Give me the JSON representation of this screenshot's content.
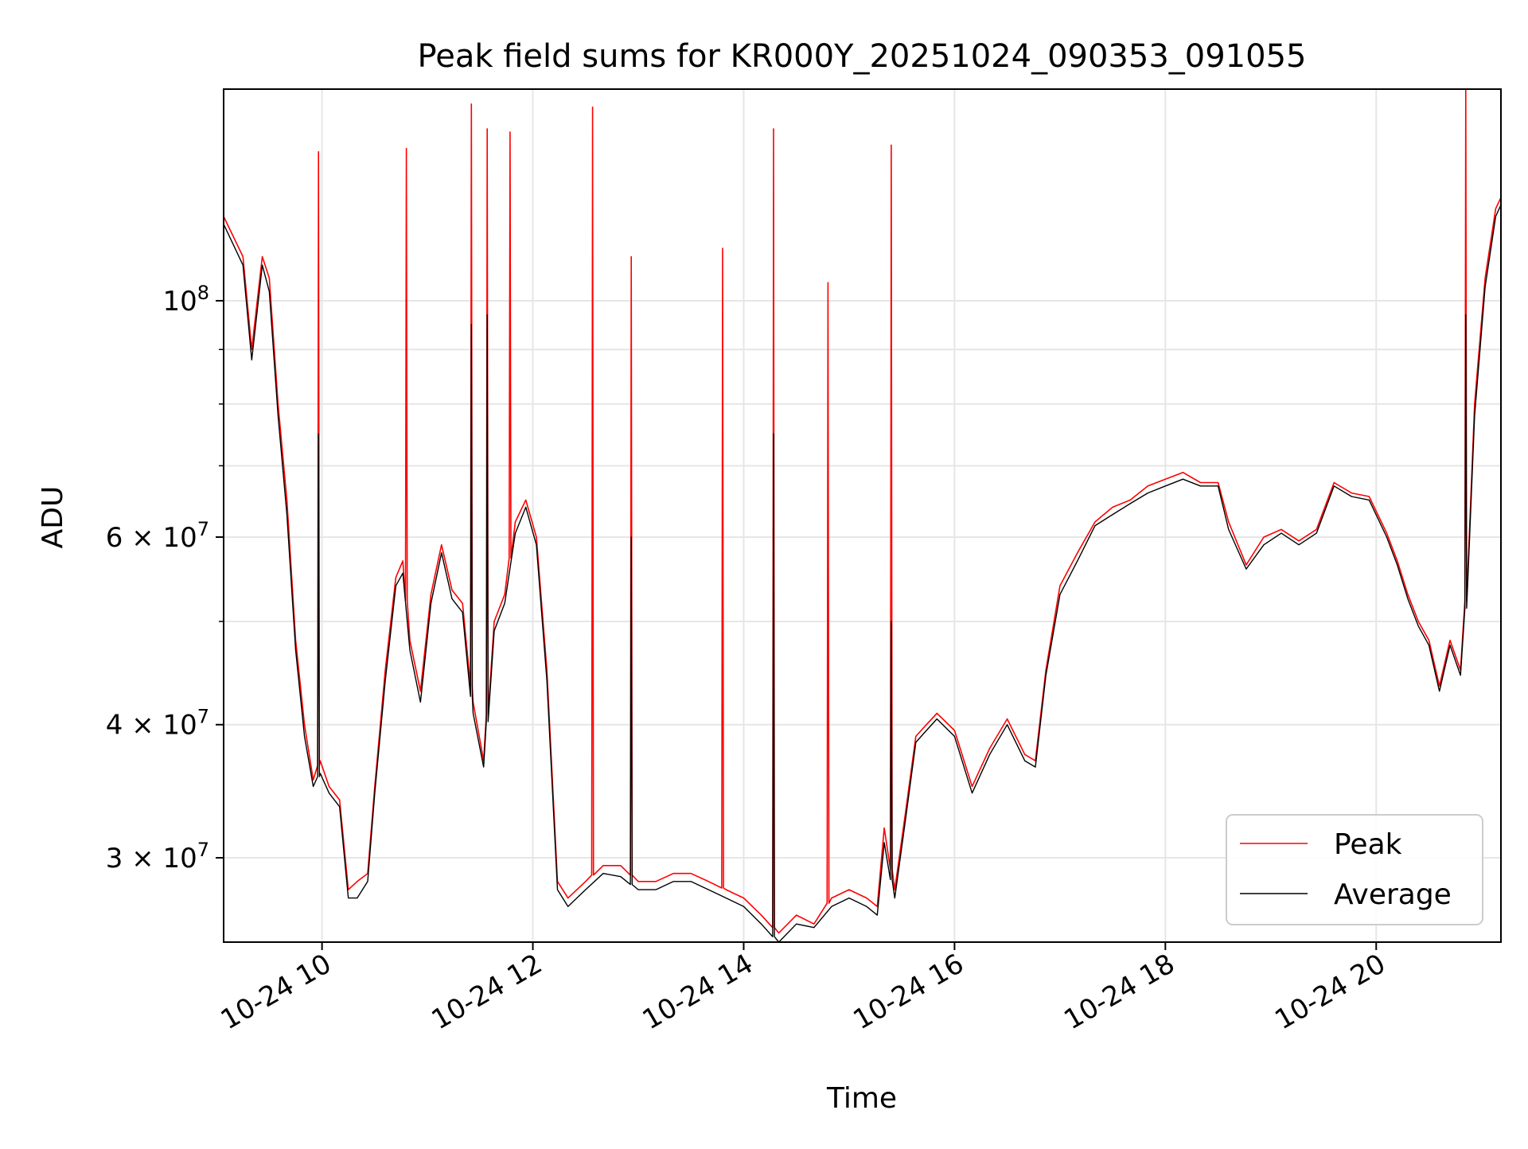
{
  "chart_data": {
    "type": "line",
    "title": "Peak field sums for KR000Y_20251024_090353_091055",
    "xlabel": "Time",
    "ylabel": "ADU",
    "x_axis_type": "time",
    "x_tick_labels": [
      "10-24 10",
      "10-24 12",
      "10-24 14",
      "10-24 16",
      "10-24 18",
      "10-24 20"
    ],
    "x_ticks": [
      "2025-10-24 10:00",
      "2025-10-24 12:00",
      "2025-10-24 14:00",
      "2025-10-24 16:00",
      "2025-10-24 18:00",
      "2025-10-24 20:00"
    ],
    "xlim": [
      "2025-10-24 09:04",
      "2025-10-24 21:11"
    ],
    "y_scale": "log",
    "ylim": [
      25000000,
      158000000
    ],
    "y_tick_values": [
      100000000,
      60000000,
      40000000,
      30000000
    ],
    "y_tick_labels": [
      {
        "base": "10",
        "exp": "8"
      },
      {
        "base": "6 × 10",
        "exp": "7"
      },
      {
        "base": "4 × 10",
        "exp": "7"
      },
      {
        "base": "3 × 10",
        "exp": "7"
      }
    ],
    "y_minor_values": [
      90000000,
      80000000,
      70000000,
      50000000
    ],
    "grid": true,
    "legend_position": "lower-right",
    "series": [
      {
        "name": "Peak",
        "color": "#ff0000",
        "x": [
          "2025-10-24 09:04",
          "2025-10-24 09:15",
          "2025-10-24 09:20",
          "2025-10-24 09:26",
          "2025-10-24 09:30",
          "2025-10-24 09:35",
          "2025-10-24 09:40",
          "2025-10-24 09:45",
          "2025-10-24 09:50",
          "2025-10-24 09:55",
          "2025-10-24 09:59",
          "2025-10-24 10:04",
          "2025-10-24 10:10",
          "2025-10-24 10:15",
          "2025-10-24 10:20",
          "2025-10-24 10:26",
          "2025-10-24 10:30",
          "2025-10-24 10:36",
          "2025-10-24 10:42",
          "2025-10-24 10:46",
          "2025-10-24 10:50",
          "2025-10-24 10:56",
          "2025-10-24 11:02",
          "2025-10-24 11:08",
          "2025-10-24 11:14",
          "2025-10-24 11:20",
          "2025-10-24 11:26",
          "2025-10-24 11:32",
          "2025-10-24 11:38",
          "2025-10-24 11:44",
          "2025-10-24 11:50",
          "2025-10-24 11:56",
          "2025-10-24 12:02",
          "2025-10-24 12:08",
          "2025-10-24 12:14",
          "2025-10-24 12:20",
          "2025-10-24 12:30",
          "2025-10-24 12:40",
          "2025-10-24 12:50",
          "2025-10-24 13:00",
          "2025-10-24 13:10",
          "2025-10-24 13:20",
          "2025-10-24 13:30",
          "2025-10-24 13:40",
          "2025-10-24 13:50",
          "2025-10-24 14:00",
          "2025-10-24 14:10",
          "2025-10-24 14:20",
          "2025-10-24 14:30",
          "2025-10-24 14:40",
          "2025-10-24 14:50",
          "2025-10-24 15:00",
          "2025-10-24 15:10",
          "2025-10-24 15:16",
          "2025-10-24 15:20",
          "2025-10-24 15:26",
          "2025-10-24 15:32",
          "2025-10-24 15:38",
          "2025-10-24 15:44",
          "2025-10-24 15:50",
          "2025-10-24 16:00",
          "2025-10-24 16:10",
          "2025-10-24 16:20",
          "2025-10-24 16:30",
          "2025-10-24 16:40",
          "2025-10-24 16:46",
          "2025-10-24 16:52",
          "2025-10-24 17:00",
          "2025-10-24 17:10",
          "2025-10-24 17:20",
          "2025-10-24 17:30",
          "2025-10-24 17:40",
          "2025-10-24 17:50",
          "2025-10-24 18:00",
          "2025-10-24 18:10",
          "2025-10-24 18:20",
          "2025-10-24 18:30",
          "2025-10-24 18:36",
          "2025-10-24 18:46",
          "2025-10-24 18:56",
          "2025-10-24 19:06",
          "2025-10-24 19:16",
          "2025-10-24 19:26",
          "2025-10-24 19:36",
          "2025-10-24 19:46",
          "2025-10-24 19:56",
          "2025-10-24 20:06",
          "2025-10-24 20:12",
          "2025-10-24 20:18",
          "2025-10-24 20:24",
          "2025-10-24 20:30",
          "2025-10-24 20:36",
          "2025-10-24 20:42",
          "2025-10-24 20:48",
          "2025-10-24 20:52",
          "2025-10-24 20:56",
          "2025-10-24 21:02",
          "2025-10-24 21:08",
          "2025-10-24 21:11"
        ],
        "y": [
          120000000,
          110000000,
          90000000,
          110000000,
          105000000,
          80000000,
          65000000,
          48000000,
          40000000,
          35500000,
          37000000,
          35000000,
          34000000,
          28000000,
          28500000,
          29000000,
          35000000,
          45000000,
          55000000,
          57000000,
          48000000,
          43000000,
          53000000,
          59000000,
          53500000,
          52000000,
          42000000,
          37000000,
          50000000,
          53000000,
          62000000,
          65000000,
          60000000,
          45000000,
          28500000,
          27500000,
          28500000,
          29500000,
          29500000,
          28500000,
          28500000,
          29000000,
          29000000,
          28500000,
          28000000,
          27500000,
          26500000,
          25500000,
          26500000,
          26000000,
          27500000,
          28000000,
          27500000,
          27000000,
          32000000,
          28000000,
          33000000,
          39000000,
          40000000,
          41000000,
          39500000,
          35000000,
          38000000,
          40500000,
          37500000,
          37000000,
          45000000,
          54000000,
          58000000,
          62000000,
          64000000,
          65000000,
          67000000,
          68000000,
          69000000,
          67500000,
          67500000,
          62000000,
          56500000,
          60000000,
          61000000,
          59500000,
          61000000,
          67500000,
          66000000,
          65500000,
          60500000,
          57000000,
          53000000,
          50000000,
          48000000,
          43500000,
          48000000,
          45000000,
          55000000,
          80000000,
          105000000,
          122000000,
          125000000
        ],
        "spikes": [
          {
            "x": "2025-10-24 09:58",
            "y": 138000000
          },
          {
            "x": "2025-10-24 10:48",
            "y": 139000000
          },
          {
            "x": "2025-10-24 11:25",
            "y": 153000000
          },
          {
            "x": "2025-10-24 11:34",
            "y": 145000000
          },
          {
            "x": "2025-10-24 11:47",
            "y": 144000000
          },
          {
            "x": "2025-10-24 12:34",
            "y": 152000000
          },
          {
            "x": "2025-10-24 12:56",
            "y": 110000000
          },
          {
            "x": "2025-10-24 13:48",
            "y": 112000000
          },
          {
            "x": "2025-10-24 14:17",
            "y": 145000000
          },
          {
            "x": "2025-10-24 14:48",
            "y": 104000000
          },
          {
            "x": "2025-10-24 15:24",
            "y": 140000000
          },
          {
            "x": "2025-10-24 20:51",
            "y": 158000000
          }
        ]
      },
      {
        "name": "Average",
        "color": "#000000",
        "x": [
          "2025-10-24 09:04",
          "2025-10-24 09:15",
          "2025-10-24 09:20",
          "2025-10-24 09:26",
          "2025-10-24 09:30",
          "2025-10-24 09:35",
          "2025-10-24 09:40",
          "2025-10-24 09:45",
          "2025-10-24 09:50",
          "2025-10-24 09:55",
          "2025-10-24 09:59",
          "2025-10-24 10:04",
          "2025-10-24 10:10",
          "2025-10-24 10:15",
          "2025-10-24 10:20",
          "2025-10-24 10:26",
          "2025-10-24 10:30",
          "2025-10-24 10:36",
          "2025-10-24 10:42",
          "2025-10-24 10:46",
          "2025-10-24 10:50",
          "2025-10-24 10:56",
          "2025-10-24 11:02",
          "2025-10-24 11:08",
          "2025-10-24 11:14",
          "2025-10-24 11:20",
          "2025-10-24 11:26",
          "2025-10-24 11:32",
          "2025-10-24 11:38",
          "2025-10-24 11:44",
          "2025-10-24 11:50",
          "2025-10-24 11:56",
          "2025-10-24 12:02",
          "2025-10-24 12:08",
          "2025-10-24 12:14",
          "2025-10-24 12:20",
          "2025-10-24 12:30",
          "2025-10-24 12:40",
          "2025-10-24 12:50",
          "2025-10-24 13:00",
          "2025-10-24 13:10",
          "2025-10-24 13:20",
          "2025-10-24 13:30",
          "2025-10-24 13:40",
          "2025-10-24 13:50",
          "2025-10-24 14:00",
          "2025-10-24 14:10",
          "2025-10-24 14:20",
          "2025-10-24 14:30",
          "2025-10-24 14:40",
          "2025-10-24 14:50",
          "2025-10-24 15:00",
          "2025-10-24 15:10",
          "2025-10-24 15:16",
          "2025-10-24 15:20",
          "2025-10-24 15:26",
          "2025-10-24 15:32",
          "2025-10-24 15:38",
          "2025-10-24 15:44",
          "2025-10-24 15:50",
          "2025-10-24 16:00",
          "2025-10-24 16:10",
          "2025-10-24 16:20",
          "2025-10-24 16:30",
          "2025-10-24 16:40",
          "2025-10-24 16:46",
          "2025-10-24 16:52",
          "2025-10-24 17:00",
          "2025-10-24 17:10",
          "2025-10-24 17:20",
          "2025-10-24 17:30",
          "2025-10-24 17:40",
          "2025-10-24 17:50",
          "2025-10-24 18:00",
          "2025-10-24 18:10",
          "2025-10-24 18:20",
          "2025-10-24 18:30",
          "2025-10-24 18:36",
          "2025-10-24 18:46",
          "2025-10-24 18:56",
          "2025-10-24 19:06",
          "2025-10-24 19:16",
          "2025-10-24 19:26",
          "2025-10-24 19:36",
          "2025-10-24 19:46",
          "2025-10-24 19:56",
          "2025-10-24 20:06",
          "2025-10-24 20:12",
          "2025-10-24 20:18",
          "2025-10-24 20:24",
          "2025-10-24 20:30",
          "2025-10-24 20:36",
          "2025-10-24 20:42",
          "2025-10-24 20:48",
          "2025-10-24 20:52",
          "2025-10-24 20:56",
          "2025-10-24 21:02",
          "2025-10-24 21:08",
          "2025-10-24 21:11"
        ],
        "y": [
          118000000,
          108000000,
          88000000,
          108000000,
          102000000,
          78000000,
          63000000,
          47000000,
          39000000,
          35000000,
          36000000,
          34500000,
          33500000,
          27500000,
          27500000,
          28500000,
          34500000,
          44000000,
          54000000,
          55500000,
          47000000,
          42000000,
          52000000,
          58000000,
          52500000,
          51000000,
          41000000,
          36500000,
          49000000,
          52000000,
          60500000,
          64000000,
          59000000,
          44000000,
          28000000,
          27000000,
          28000000,
          29000000,
          28800000,
          28000000,
          28000000,
          28500000,
          28500000,
          28000000,
          27500000,
          27000000,
          26000000,
          25000000,
          26000000,
          25800000,
          27000000,
          27500000,
          27000000,
          26500000,
          31000000,
          27500000,
          32500000,
          38500000,
          39500000,
          40500000,
          39000000,
          34500000,
          37500000,
          40000000,
          37000000,
          36500000,
          44500000,
          53000000,
          57000000,
          61500000,
          63000000,
          64500000,
          66000000,
          67000000,
          68000000,
          67000000,
          67000000,
          61000000,
          56000000,
          59000000,
          60500000,
          59000000,
          60500000,
          67000000,
          65500000,
          65000000,
          60000000,
          56500000,
          52500000,
          49500000,
          47500000,
          43000000,
          47500000,
          44500000,
          54000000,
          78000000,
          103000000,
          120000000,
          123000000
        ],
        "spikes": [
          {
            "x": "2025-10-24 09:58",
            "y": 75000000
          },
          {
            "x": "2025-10-24 11:25",
            "y": 95000000
          },
          {
            "x": "2025-10-24 11:34",
            "y": 97000000
          },
          {
            "x": "2025-10-24 12:56",
            "y": 60000000
          },
          {
            "x": "2025-10-24 14:17",
            "y": 75000000
          },
          {
            "x": "2025-10-24 15:24",
            "y": 50000000
          },
          {
            "x": "2025-10-24 20:51",
            "y": 97000000
          }
        ]
      }
    ]
  }
}
